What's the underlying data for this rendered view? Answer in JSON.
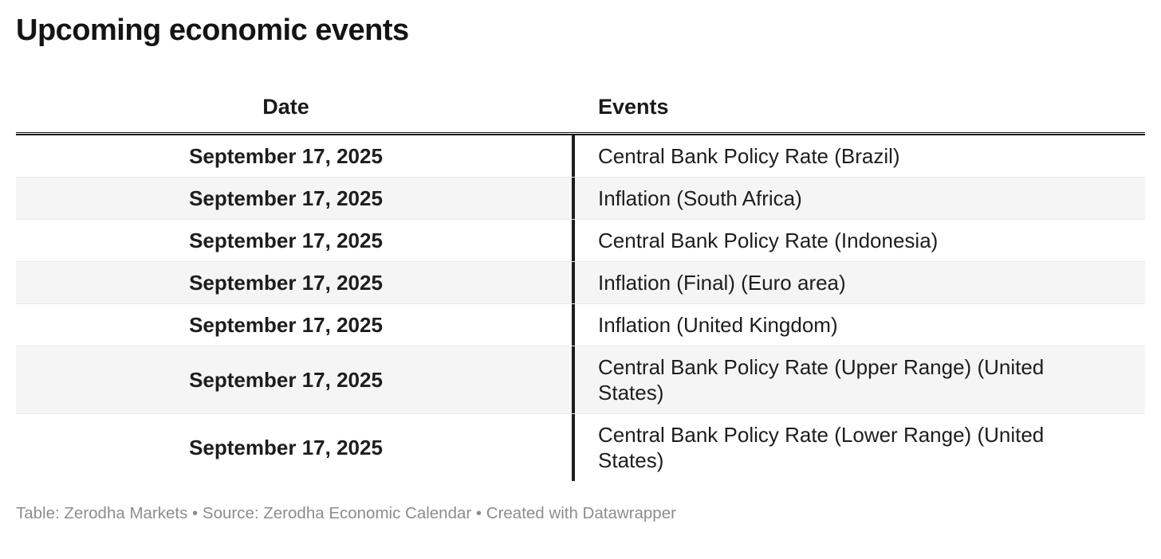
{
  "chart_data": {
    "type": "table",
    "title": "Upcoming economic events",
    "columns": [
      "Date",
      "Events"
    ],
    "rows": [
      [
        "September 17, 2025",
        "Central Bank Policy Rate (Brazil)"
      ],
      [
        "September 17, 2025",
        "Inflation (South Africa)"
      ],
      [
        "September 17, 2025",
        "Central Bank Policy Rate (Indonesia)"
      ],
      [
        "September 17, 2025",
        "Inflation (Final) (Euro area)"
      ],
      [
        "September 17, 2025",
        "Inflation (United Kingdom)"
      ],
      [
        "September 17, 2025",
        "Central Bank Policy Rate (Upper Range) (United States)"
      ],
      [
        "September 17, 2025",
        "Central Bank Policy Rate (Lower Range) (United States)"
      ]
    ],
    "footer": "Table: Zerodha Markets • Source: Zerodha Economic Calendar • Created with Datawrapper",
    "layout_hints": {
      "date_column_align": "center",
      "events_column_align": "left",
      "zebra_striping": true
    },
    "colors": {
      "text": "#1d1d1d",
      "stripe_row": "#f5f5f5",
      "row_separator": "#e9e9e9",
      "header_rule": "#191919",
      "column_divider": "#1d1d1d",
      "footer_text": "#8d8d8d",
      "background": "#ffffff"
    }
  }
}
